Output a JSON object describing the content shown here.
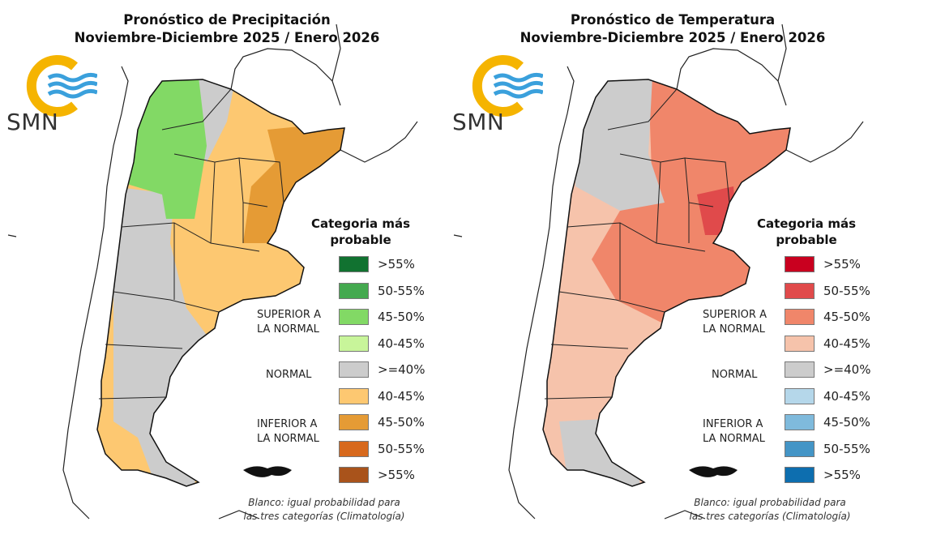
{
  "panels": [
    {
      "title_line1": "Pronóstico de Precipitación",
      "title_line2": "Noviembre-Diciembre 2025 / Enero 2026",
      "logo_text": "SMN",
      "legend": {
        "title_line1": "Categoria más",
        "title_line2": "probable",
        "superior_label_1": "SUPERIOR A",
        "superior_label_2": "LA NORMAL",
        "normal_label": "NORMAL",
        "inferior_label_1": "INFERIOR A",
        "inferior_label_2": "LA NORMAL",
        "items": [
          {
            "label": ">55%",
            "color": "#117230"
          },
          {
            "label": "50-55%",
            "color": "#44a94f"
          },
          {
            "label": "45-50%",
            "color": "#82d965"
          },
          {
            "label": "40-45%",
            "color": "#c8f59a"
          },
          {
            "label": ">=40%",
            "color": "#cccccc"
          },
          {
            "label": "40-45%",
            "color": "#fdc871"
          },
          {
            "label": "45-50%",
            "color": "#e59b35"
          },
          {
            "label": "50-55%",
            "color": "#d7691d"
          },
          {
            "label": ">55%",
            "color": "#a9531b"
          }
        ],
        "note_line1": "Blanco: igual probabilidad para",
        "note_line2": "las tres categorías (Climatología)"
      },
      "map_colors": {
        "north": "#82d965",
        "central": "#cccccc",
        "main": "#fdc871",
        "east": "#e59b35"
      }
    },
    {
      "title_line1": "Pronóstico de Temperatura",
      "title_line2": "Noviembre-Diciembre 2025 / Enero 2026",
      "logo_text": "SMN",
      "legend": {
        "title_line1": "Categoria más",
        "title_line2": "probable",
        "superior_label_1": "SUPERIOR A",
        "superior_label_2": "LA NORMAL",
        "normal_label": "NORMAL",
        "inferior_label_1": "INFERIOR A",
        "inferior_label_2": "LA NORMAL",
        "items": [
          {
            "label": ">55%",
            "color": "#c9001f"
          },
          {
            "label": "50-55%",
            "color": "#e04a4b"
          },
          {
            "label": "45-50%",
            "color": "#f0866a"
          },
          {
            "label": "40-45%",
            "color": "#f6c3ab"
          },
          {
            "label": ">=40%",
            "color": "#cccccc"
          },
          {
            "label": "40-45%",
            "color": "#b5d7ea"
          },
          {
            "label": "45-50%",
            "color": "#7fbadc"
          },
          {
            "label": "50-55%",
            "color": "#4495c6"
          },
          {
            "label": ">55%",
            "color": "#0d6eaf"
          }
        ],
        "note_line1": "Blanco: igual probabilidad para",
        "note_line2": "las tres categorías (Climatología)"
      },
      "map_colors": {
        "north": "#cccccc",
        "central": "#f0866a",
        "main": "#f6c3ab",
        "east": "#e04a4b"
      }
    }
  ]
}
